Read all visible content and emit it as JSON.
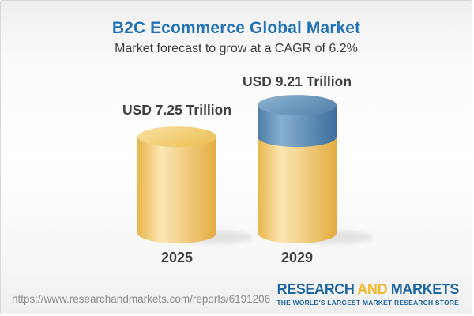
{
  "header": {
    "title": "B2C Ecommerce Global Market",
    "subtitle": "Market forecast to grow at a CAGR of 6.2%"
  },
  "chart_data": {
    "type": "bar",
    "variant": "3d-cylinder",
    "categories": [
      "2025",
      "2029"
    ],
    "values": [
      7.25,
      9.21
    ],
    "value_labels": [
      "USD 7.25 Trillion",
      "USD 9.21 Trillion"
    ],
    "unit": "USD Trillion",
    "cagr": "6.2%",
    "legend_position": "none",
    "grid": false,
    "segments_note": "2029 bar shows base (gold) equal to 2025 value plus growth cap (blue) of 1.96 trillion",
    "colors": {
      "base_gold": "#EFC25D",
      "growth_blue": "#5D8BB3",
      "label_text": "#3F3F3F"
    }
  },
  "footer": {
    "source_url": "https://www.researchandmarkets.com/reports/6191206",
    "logo": {
      "part1": "RESEARCH",
      "part2": "AND",
      "part3": "MARKETS",
      "tagline": "THE WORLD'S LARGEST MARKET RESEARCH STORE"
    },
    "brand_colors": {
      "blue": "#1F66A5",
      "gold": "#F2B62C"
    }
  }
}
